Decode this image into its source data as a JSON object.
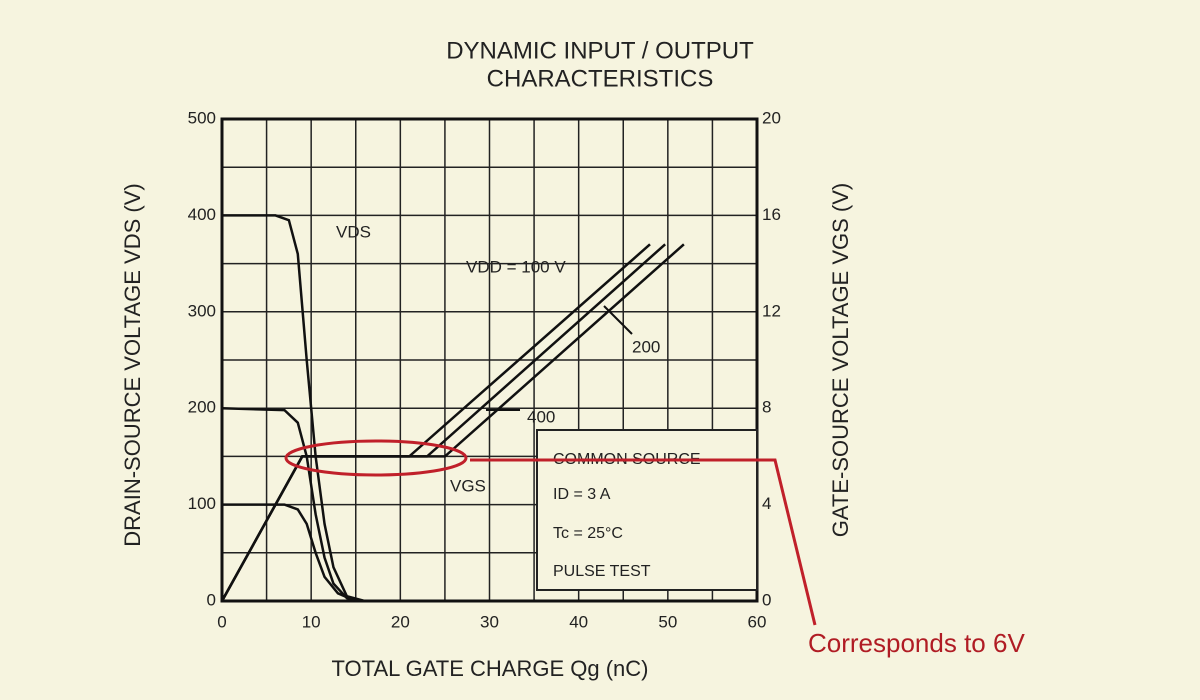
{
  "chart_data": {
    "type": "line",
    "title": [
      "DYNAMIC INPUT / OUTPUT",
      "CHARACTERISTICS"
    ],
    "x_label": "TOTAL GATE CHARGE  Qg  (nC)",
    "y_label": "DRAIN-SOURCE VOLTAGE  VDS  (V)",
    "y2_label": "GATE-SOURCE VOLTAGE  VGS  (V)",
    "xlim": [
      0,
      60
    ],
    "xticks": [
      0,
      10,
      20,
      30,
      40,
      50,
      60
    ],
    "ylim": [
      0,
      500
    ],
    "yticks": [
      0,
      100,
      200,
      300,
      400,
      500
    ],
    "y2lim": [
      0,
      20
    ],
    "y2ticks": [
      0,
      4,
      8,
      12,
      16,
      20
    ],
    "grid": true,
    "series": [
      {
        "color": "#111111",
        "x": [
          0,
          6,
          7.5,
          8.5,
          9.5,
          10.5,
          11.5,
          12.5,
          14,
          16,
          60
        ],
        "values": [
          400,
          400,
          395,
          360,
          250,
          150,
          80,
          35,
          5,
          0,
          0
        ]
      },
      {
        "color": "#111111",
        "x": [
          0,
          7,
          8.5,
          9.5,
          10.5,
          11.5,
          12.5,
          14,
          16,
          60
        ],
        "values": [
          200,
          198,
          185,
          150,
          90,
          45,
          18,
          3,
          0,
          0
        ]
      },
      {
        "color": "#111111",
        "x": [
          0,
          7,
          8.5,
          9.5,
          10.5,
          11.5,
          13,
          15,
          60
        ],
        "values": [
          100,
          100,
          95,
          80,
          50,
          25,
          8,
          0,
          0
        ]
      },
      {
        "color": "#111111",
        "axis": "y2",
        "x": [
          0,
          9,
          21,
          48
        ],
        "values": [
          0,
          6,
          6,
          14.8
        ]
      },
      {
        "color": "#111111",
        "axis": "y2",
        "x": [
          0,
          9,
          23,
          49.7
        ],
        "values": [
          0,
          6,
          6,
          14.8
        ]
      },
      {
        "color": "#111111",
        "axis": "y2",
        "x": [
          0,
          9,
          25,
          51.8
        ],
        "values": [
          0,
          6,
          6,
          14.8
        ]
      }
    ],
    "annotations": [
      "VDS",
      "VDD = 100 V",
      "200",
      "400",
      "VGS"
    ],
    "note_box": [
      "COMMON SOURCE",
      "ID = 3 A",
      "Tc = 25°C",
      "PULSE TEST"
    ],
    "callout": "Corresponds to 6V"
  }
}
